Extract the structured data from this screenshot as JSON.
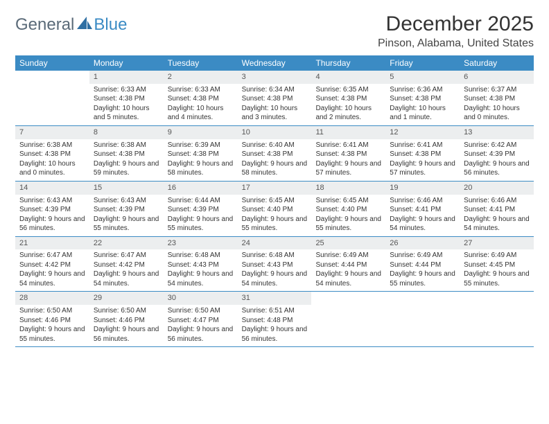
{
  "logo": {
    "text_general": "General",
    "text_blue": "Blue"
  },
  "title": "December 2025",
  "location": "Pinson, Alabama, United States",
  "dow": [
    "Sunday",
    "Monday",
    "Tuesday",
    "Wednesday",
    "Thursday",
    "Friday",
    "Saturday"
  ],
  "colors": {
    "header_bg": "#3b8bc4",
    "daynum_bg": "#eceeef",
    "rule": "#3b8bc4",
    "logo_gray": "#5a6a78",
    "logo_blue": "#3b8bc4"
  },
  "typography": {
    "title_fontsize": 30,
    "location_fontsize": 16,
    "dow_fontsize": 12,
    "cell_fontsize": 10
  },
  "weeks": [
    [
      {
        "n": "",
        "sr": "",
        "ss": "",
        "dl": ""
      },
      {
        "n": "1",
        "sr": "Sunrise: 6:33 AM",
        "ss": "Sunset: 4:38 PM",
        "dl": "Daylight: 10 hours and 5 minutes."
      },
      {
        "n": "2",
        "sr": "Sunrise: 6:33 AM",
        "ss": "Sunset: 4:38 PM",
        "dl": "Daylight: 10 hours and 4 minutes."
      },
      {
        "n": "3",
        "sr": "Sunrise: 6:34 AM",
        "ss": "Sunset: 4:38 PM",
        "dl": "Daylight: 10 hours and 3 minutes."
      },
      {
        "n": "4",
        "sr": "Sunrise: 6:35 AM",
        "ss": "Sunset: 4:38 PM",
        "dl": "Daylight: 10 hours and 2 minutes."
      },
      {
        "n": "5",
        "sr": "Sunrise: 6:36 AM",
        "ss": "Sunset: 4:38 PM",
        "dl": "Daylight: 10 hours and 1 minute."
      },
      {
        "n": "6",
        "sr": "Sunrise: 6:37 AM",
        "ss": "Sunset: 4:38 PM",
        "dl": "Daylight: 10 hours and 0 minutes."
      }
    ],
    [
      {
        "n": "7",
        "sr": "Sunrise: 6:38 AM",
        "ss": "Sunset: 4:38 PM",
        "dl": "Daylight: 10 hours and 0 minutes."
      },
      {
        "n": "8",
        "sr": "Sunrise: 6:38 AM",
        "ss": "Sunset: 4:38 PM",
        "dl": "Daylight: 9 hours and 59 minutes."
      },
      {
        "n": "9",
        "sr": "Sunrise: 6:39 AM",
        "ss": "Sunset: 4:38 PM",
        "dl": "Daylight: 9 hours and 58 minutes."
      },
      {
        "n": "10",
        "sr": "Sunrise: 6:40 AM",
        "ss": "Sunset: 4:38 PM",
        "dl": "Daylight: 9 hours and 58 minutes."
      },
      {
        "n": "11",
        "sr": "Sunrise: 6:41 AM",
        "ss": "Sunset: 4:38 PM",
        "dl": "Daylight: 9 hours and 57 minutes."
      },
      {
        "n": "12",
        "sr": "Sunrise: 6:41 AM",
        "ss": "Sunset: 4:38 PM",
        "dl": "Daylight: 9 hours and 57 minutes."
      },
      {
        "n": "13",
        "sr": "Sunrise: 6:42 AM",
        "ss": "Sunset: 4:39 PM",
        "dl": "Daylight: 9 hours and 56 minutes."
      }
    ],
    [
      {
        "n": "14",
        "sr": "Sunrise: 6:43 AM",
        "ss": "Sunset: 4:39 PM",
        "dl": "Daylight: 9 hours and 56 minutes."
      },
      {
        "n": "15",
        "sr": "Sunrise: 6:43 AM",
        "ss": "Sunset: 4:39 PM",
        "dl": "Daylight: 9 hours and 55 minutes."
      },
      {
        "n": "16",
        "sr": "Sunrise: 6:44 AM",
        "ss": "Sunset: 4:39 PM",
        "dl": "Daylight: 9 hours and 55 minutes."
      },
      {
        "n": "17",
        "sr": "Sunrise: 6:45 AM",
        "ss": "Sunset: 4:40 PM",
        "dl": "Daylight: 9 hours and 55 minutes."
      },
      {
        "n": "18",
        "sr": "Sunrise: 6:45 AM",
        "ss": "Sunset: 4:40 PM",
        "dl": "Daylight: 9 hours and 55 minutes."
      },
      {
        "n": "19",
        "sr": "Sunrise: 6:46 AM",
        "ss": "Sunset: 4:41 PM",
        "dl": "Daylight: 9 hours and 54 minutes."
      },
      {
        "n": "20",
        "sr": "Sunrise: 6:46 AM",
        "ss": "Sunset: 4:41 PM",
        "dl": "Daylight: 9 hours and 54 minutes."
      }
    ],
    [
      {
        "n": "21",
        "sr": "Sunrise: 6:47 AM",
        "ss": "Sunset: 4:42 PM",
        "dl": "Daylight: 9 hours and 54 minutes."
      },
      {
        "n": "22",
        "sr": "Sunrise: 6:47 AM",
        "ss": "Sunset: 4:42 PM",
        "dl": "Daylight: 9 hours and 54 minutes."
      },
      {
        "n": "23",
        "sr": "Sunrise: 6:48 AM",
        "ss": "Sunset: 4:43 PM",
        "dl": "Daylight: 9 hours and 54 minutes."
      },
      {
        "n": "24",
        "sr": "Sunrise: 6:48 AM",
        "ss": "Sunset: 4:43 PM",
        "dl": "Daylight: 9 hours and 54 minutes."
      },
      {
        "n": "25",
        "sr": "Sunrise: 6:49 AM",
        "ss": "Sunset: 4:44 PM",
        "dl": "Daylight: 9 hours and 54 minutes."
      },
      {
        "n": "26",
        "sr": "Sunrise: 6:49 AM",
        "ss": "Sunset: 4:44 PM",
        "dl": "Daylight: 9 hours and 55 minutes."
      },
      {
        "n": "27",
        "sr": "Sunrise: 6:49 AM",
        "ss": "Sunset: 4:45 PM",
        "dl": "Daylight: 9 hours and 55 minutes."
      }
    ],
    [
      {
        "n": "28",
        "sr": "Sunrise: 6:50 AM",
        "ss": "Sunset: 4:46 PM",
        "dl": "Daylight: 9 hours and 55 minutes."
      },
      {
        "n": "29",
        "sr": "Sunrise: 6:50 AM",
        "ss": "Sunset: 4:46 PM",
        "dl": "Daylight: 9 hours and 56 minutes."
      },
      {
        "n": "30",
        "sr": "Sunrise: 6:50 AM",
        "ss": "Sunset: 4:47 PM",
        "dl": "Daylight: 9 hours and 56 minutes."
      },
      {
        "n": "31",
        "sr": "Sunrise: 6:51 AM",
        "ss": "Sunset: 4:48 PM",
        "dl": "Daylight: 9 hours and 56 minutes."
      },
      {
        "n": "",
        "sr": "",
        "ss": "",
        "dl": ""
      },
      {
        "n": "",
        "sr": "",
        "ss": "",
        "dl": ""
      },
      {
        "n": "",
        "sr": "",
        "ss": "",
        "dl": ""
      }
    ]
  ]
}
